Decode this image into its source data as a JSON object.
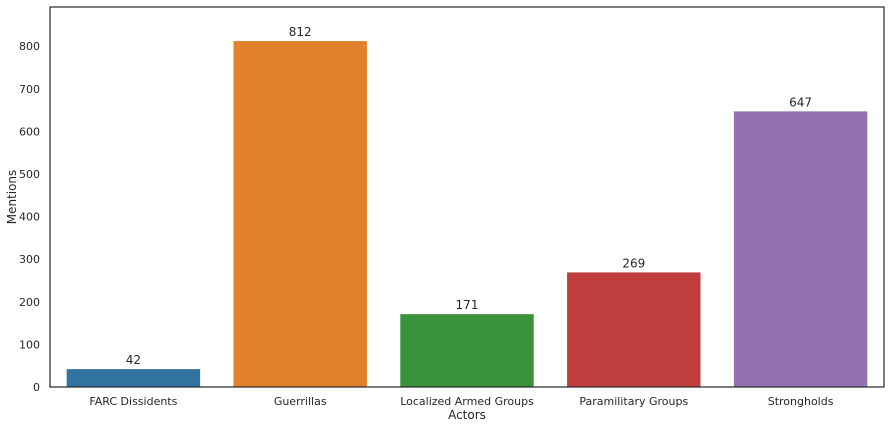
{
  "chart_data": {
    "type": "bar",
    "title": "",
    "xlabel": "Actors",
    "ylabel": "Mentions",
    "categories": [
      "FARC Dissidents",
      "Guerrillas",
      "Localized Armed Groups",
      "Paramilitary Groups",
      "Strongholds"
    ],
    "values": [
      42,
      812,
      171,
      269,
      647
    ],
    "value_labels": [
      "42",
      "812",
      "171",
      "269",
      "647"
    ],
    "colors": [
      "#3274a1",
      "#e1812c",
      "#3a923a",
      "#c03d3e",
      "#9372b2"
    ],
    "ylim": [
      0,
      892
    ],
    "yticks": [
      0,
      100,
      200,
      300,
      400,
      500,
      600,
      700,
      800
    ],
    "grid": false,
    "legend": "none"
  }
}
